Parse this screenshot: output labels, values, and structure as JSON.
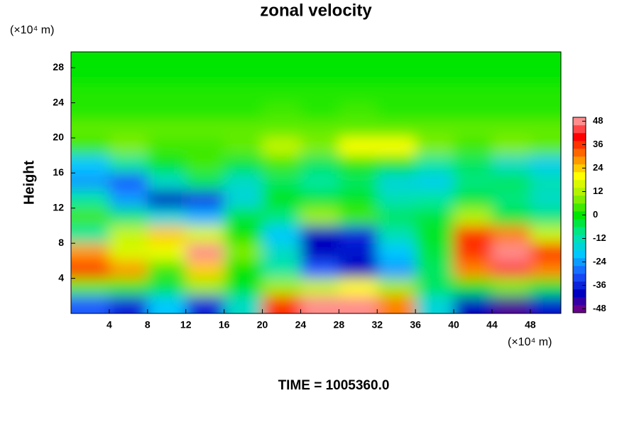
{
  "chart_data": {
    "type": "contour",
    "title": "zonal velocity",
    "ylabel": "Height",
    "y_unit": "(×10⁴ m)",
    "x_unit": "(×10⁴ m)",
    "footer": "TIME = 1005360.0",
    "xlim": [
      0,
      51.2
    ],
    "ylim": [
      0,
      29.8
    ],
    "xticks": [
      4,
      8,
      12,
      16,
      20,
      24,
      28,
      32,
      36,
      40,
      44,
      48
    ],
    "yticks": [
      4,
      8,
      12,
      16,
      20,
      24,
      28
    ],
    "x": [
      2,
      6,
      10,
      14,
      18,
      22,
      26,
      30,
      34,
      38,
      42,
      46,
      50
    ],
    "y": [
      29,
      27,
      25,
      23,
      21,
      19,
      17,
      15,
      13,
      11,
      9,
      7,
      5,
      3,
      1
    ],
    "z": [
      [
        0,
        0,
        0,
        0,
        0,
        0,
        0,
        0,
        0,
        0,
        0,
        0,
        0
      ],
      [
        0,
        0,
        0,
        0,
        0,
        0,
        0,
        0,
        0,
        0,
        0,
        0,
        0
      ],
      [
        2,
        2,
        2,
        2,
        2,
        2,
        2,
        2,
        2,
        2,
        2,
        2,
        2
      ],
      [
        2,
        2,
        2,
        2,
        2,
        4,
        2,
        4,
        2,
        2,
        2,
        2,
        2
      ],
      [
        6,
        6,
        6,
        6,
        6,
        6,
        6,
        6,
        6,
        6,
        6,
        6,
        6
      ],
      [
        4,
        8,
        4,
        4,
        6,
        14,
        8,
        20,
        20,
        8,
        4,
        8,
        6
      ],
      [
        -20,
        -10,
        -2,
        4,
        -4,
        4,
        -6,
        2,
        -2,
        -10,
        -6,
        -14,
        -18
      ],
      [
        -24,
        -30,
        -14,
        -6,
        -14,
        -6,
        -10,
        -6,
        -16,
        -18,
        -8,
        -6,
        -12
      ],
      [
        -10,
        -24,
        -40,
        -34,
        -16,
        0,
        -4,
        -2,
        -12,
        -10,
        -4,
        -8,
        -14
      ],
      [
        4,
        -8,
        -16,
        -22,
        -4,
        -8,
        10,
        4,
        -6,
        -4,
        12,
        -4,
        -8
      ],
      [
        -10,
        14,
        24,
        16,
        0,
        -20,
        -40,
        -36,
        -12,
        -2,
        36,
        30,
        14
      ],
      [
        28,
        16,
        18,
        48,
        8,
        -14,
        -40,
        -38,
        -20,
        -4,
        36,
        48,
        36
      ],
      [
        36,
        28,
        4,
        24,
        0,
        -10,
        -30,
        -40,
        -24,
        -6,
        30,
        44,
        30
      ],
      [
        6,
        4,
        -4,
        10,
        -2,
        10,
        14,
        20,
        10,
        -6,
        0,
        8,
        -2
      ],
      [
        -30,
        -36,
        -20,
        -36,
        -14,
        36,
        48,
        48,
        30,
        -16,
        -40,
        -46,
        -38
      ]
    ],
    "colorbar": {
      "lim": [
        -50,
        50
      ],
      "ticks": [
        48,
        36,
        24,
        12,
        0,
        -12,
        -24,
        -36,
        -48
      ],
      "colors": [
        "#800080",
        "#0000c0",
        "#1e5aff",
        "#00c8ff",
        "#00e6a0",
        "#00e600",
        "#a0f000",
        "#ffff00",
        "#ff8000",
        "#ff0000",
        "#ffb0b0"
      ]
    }
  }
}
